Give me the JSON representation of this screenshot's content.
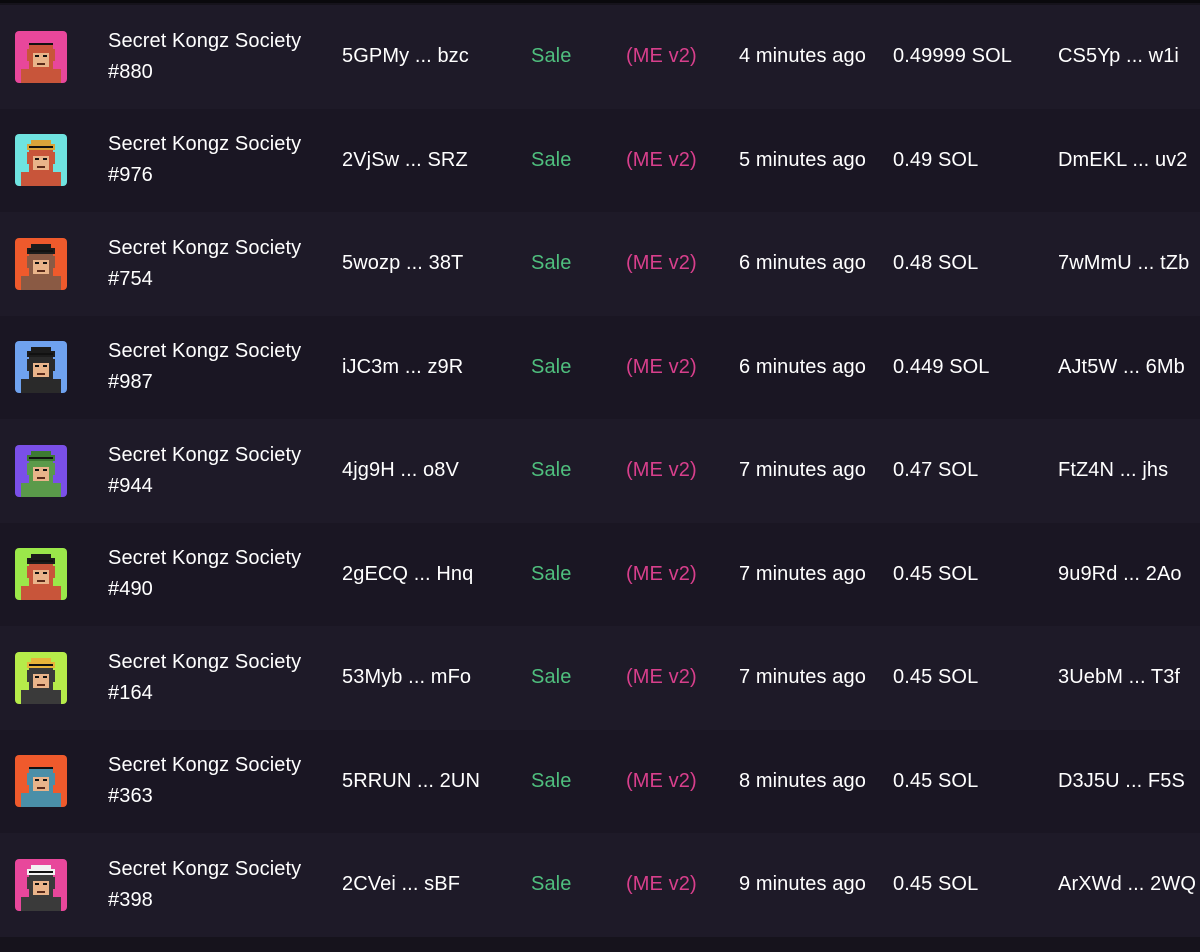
{
  "colors": {
    "sale": "#4fbf7e",
    "marketplace": "#d83f8c",
    "row_odd": "#1e1a28",
    "row_even": "#1a1623"
  },
  "rows": [
    {
      "name": "Secret Kongz Society #880",
      "signature": "5GPMy ... bzc",
      "type": "Sale",
      "marketplace": "(ME v2)",
      "time": "4 minutes ago",
      "price": "0.49999 SOL",
      "buyer": "CS5Yp ... w1i",
      "thumb_bg": "#e8479b",
      "thumb_fur": "#c8553a",
      "thumb_hat": "",
      "thumb_icon": "kong-nft-thumbnail"
    },
    {
      "name": "Secret Kongz Society #976",
      "signature": "2VjSw ... SRZ",
      "type": "Sale",
      "marketplace": "(ME v2)",
      "time": "5 minutes ago",
      "price": "0.49 SOL",
      "buyer": "DmEKL ... uv2",
      "thumb_bg": "#6fe3e0",
      "thumb_fur": "#c8553a",
      "thumb_hat": "#d9a43a",
      "thumb_icon": "kong-nft-thumbnail"
    },
    {
      "name": "Secret Kongz Society #754",
      "signature": "5wozp ... 38T",
      "type": "Sale",
      "marketplace": "(ME v2)",
      "time": "6 minutes ago",
      "price": "0.48 SOL",
      "buyer": "7wMmU ... tZb",
      "thumb_bg": "#ef5a2c",
      "thumb_fur": "#8a5a44",
      "thumb_hat": "#1c1c1c",
      "thumb_icon": "kong-nft-thumbnail"
    },
    {
      "name": "Secret Kongz Society #987",
      "signature": "iJC3m ... z9R",
      "type": "Sale",
      "marketplace": "(ME v2)",
      "time": "6 minutes ago",
      "price": "0.449 SOL",
      "buyer": "AJt5W ... 6Mb",
      "thumb_bg": "#6fa2ef",
      "thumb_fur": "#2a2a2a",
      "thumb_hat": "#1c1c1c",
      "thumb_icon": "kong-nft-thumbnail"
    },
    {
      "name": "Secret Kongz Society #944",
      "signature": "4jg9H ... o8V",
      "type": "Sale",
      "marketplace": "(ME v2)",
      "time": "7 minutes ago",
      "price": "0.47 SOL",
      "buyer": "FtZ4N ... jhs",
      "thumb_bg": "#7a4fe8",
      "thumb_fur": "#5a9a4a",
      "thumb_hat": "#3d7a32",
      "thumb_icon": "kong-nft-thumbnail"
    },
    {
      "name": "Secret Kongz Society #490",
      "signature": "2gECQ ... Hnq",
      "type": "Sale",
      "marketplace": "(ME v2)",
      "time": "7 minutes ago",
      "price": "0.45 SOL",
      "buyer": "9u9Rd ... 2Ao",
      "thumb_bg": "#9be84a",
      "thumb_fur": "#c8553a",
      "thumb_hat": "#1c1c1c",
      "thumb_icon": "kong-nft-thumbnail"
    },
    {
      "name": "Secret Kongz Society #164",
      "signature": "53Myb ... mFo",
      "type": "Sale",
      "marketplace": "(ME v2)",
      "time": "7 minutes ago",
      "price": "0.45 SOL",
      "buyer": "3UebM ... T3f",
      "thumb_bg": "#b6ec4a",
      "thumb_fur": "#3a3a3a",
      "thumb_hat": "#e8b43a",
      "thumb_icon": "kong-nft-thumbnail"
    },
    {
      "name": "Secret Kongz Society #363",
      "signature": "5RRUN ... 2UN",
      "type": "Sale",
      "marketplace": "(ME v2)",
      "time": "8 minutes ago",
      "price": "0.45 SOL",
      "buyer": "D3J5U ... F5S",
      "thumb_bg": "#ef5a2c",
      "thumb_fur": "#4a8fa8",
      "thumb_hat": "",
      "thumb_icon": "kong-nft-thumbnail"
    },
    {
      "name": "Secret Kongz Society #398",
      "signature": "2CVei ... sBF",
      "type": "Sale",
      "marketplace": "(ME v2)",
      "time": "9 minutes ago",
      "price": "0.45 SOL",
      "buyer": "ArXWd ... 2WQ",
      "thumb_bg": "#e8479b",
      "thumb_fur": "#3a3a3a",
      "thumb_hat": "#f2f2f2",
      "thumb_icon": "kong-nft-thumbnail"
    }
  ]
}
